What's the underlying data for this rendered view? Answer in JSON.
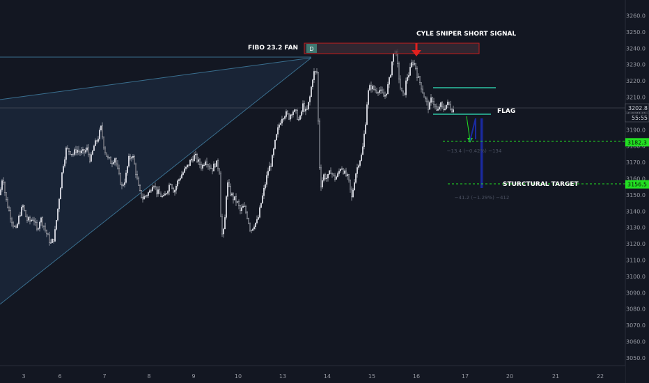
{
  "chart_data": {
    "type": "candlestick",
    "title": "",
    "xlabel": "",
    "ylabel": "",
    "ylim": [
      3043,
      3270
    ],
    "y_ticks": [
      3260.0,
      3250.0,
      3240.0,
      3230.0,
      3220.0,
      3210.0,
      3200.0,
      3190.0,
      3180.0,
      3170.0,
      3160.0,
      3150.0,
      3140.0,
      3130.0,
      3120.0,
      3110.0,
      3100.0,
      3090.0,
      3080.0,
      3070.0,
      3060.0,
      3050.0
    ],
    "y_tick_labels": [
      "3260.0",
      "3250.0",
      "3240.0",
      "3230.0",
      "3220.0",
      "3210.0",
      "3200.0",
      "3190.0",
      "3180.0",
      "3170.0",
      "3160.0",
      "3150.0",
      "3140.0",
      "3130.0",
      "3120.0",
      "3110.0",
      "3100.0",
      "3090.0",
      "3080.0",
      "3070.0",
      "3060.0",
      "3050.0"
    ],
    "x_tick_labels": [
      "3",
      "6",
      "7",
      "8",
      "9",
      "10",
      "13",
      "14",
      "15",
      "16",
      "17",
      "20",
      "21",
      "22"
    ],
    "price_series": {
      "name": "",
      "points": [
        [
          0,
          3150
        ],
        [
          4,
          3163
        ],
        [
          8,
          3148
        ],
        [
          13,
          3140
        ],
        [
          18,
          3133
        ],
        [
          23,
          3128
        ],
        [
          28,
          3138
        ],
        [
          33,
          3143
        ],
        [
          38,
          3135
        ],
        [
          43,
          3134
        ],
        [
          48,
          3136
        ],
        [
          53,
          3128
        ],
        [
          58,
          3136
        ],
        [
          63,
          3131
        ],
        [
          68,
          3125
        ],
        [
          73,
          3120
        ],
        [
          78,
          3124
        ],
        [
          82,
          3138
        ],
        [
          86,
          3152
        ],
        [
          90,
          3167
        ],
        [
          95,
          3178
        ],
        [
          100,
          3177
        ],
        [
          105,
          3175
        ],
        [
          110,
          3178
        ],
        [
          115,
          3176
        ],
        [
          120,
          3176
        ],
        [
          125,
          3178
        ],
        [
          130,
          3171
        ],
        [
          135,
          3180
        ],
        [
          140,
          3184
        ],
        [
          145,
          3191
        ],
        [
          150,
          3178
        ],
        [
          155,
          3172
        ],
        [
          160,
          3170
        ],
        [
          165,
          3173
        ],
        [
          170,
          3163
        ],
        [
          175,
          3155
        ],
        [
          180,
          3160
        ],
        [
          185,
          3172
        ],
        [
          190,
          3175
        ],
        [
          195,
          3164
        ],
        [
          200,
          3152
        ],
        [
          205,
          3148
        ],
        [
          210,
          3150
        ],
        [
          215,
          3152
        ],
        [
          220,
          3158
        ],
        [
          225,
          3152
        ],
        [
          230,
          3150
        ],
        [
          235,
          3148
        ],
        [
          240,
          3153
        ],
        [
          245,
          3158
        ],
        [
          250,
          3152
        ],
        [
          255,
          3158
        ],
        [
          260,
          3162
        ],
        [
          265,
          3165
        ],
        [
          270,
          3168
        ],
        [
          275,
          3172
        ],
        [
          280,
          3174
        ],
        [
          285,
          3170
        ],
        [
          290,
          3167
        ],
        [
          295,
          3172
        ],
        [
          300,
          3168
        ],
        [
          305,
          3166
        ],
        [
          310,
          3170
        ],
        [
          315,
          3165
        ],
        [
          318,
          3125
        ],
        [
          322,
          3128
        ],
        [
          326,
          3158
        ],
        [
          330,
          3152
        ],
        [
          335,
          3148
        ],
        [
          340,
          3146
        ],
        [
          345,
          3140
        ],
        [
          350,
          3143
        ],
        [
          355,
          3137
        ],
        [
          360,
          3128
        ],
        [
          365,
          3132
        ],
        [
          370,
          3134
        ],
        [
          375,
          3145
        ],
        [
          380,
          3155
        ],
        [
          385,
          3165
        ],
        [
          390,
          3170
        ],
        [
          395,
          3182
        ],
        [
          400,
          3192
        ],
        [
          405,
          3198
        ],
        [
          410,
          3200
        ],
        [
          415,
          3198
        ],
        [
          420,
          3202
        ],
        [
          425,
          3200
        ],
        [
          430,
          3195
        ],
        [
          435,
          3205
        ],
        [
          440,
          3200
        ],
        [
          445,
          3210
        ],
        [
          450,
          3225
        ],
        [
          455,
          3225
        ],
        [
          458,
          3180
        ],
        [
          460,
          3155
        ],
        [
          465,
          3162
        ],
        [
          470,
          3160
        ],
        [
          475,
          3165
        ],
        [
          480,
          3160
        ],
        [
          485,
          3162
        ],
        [
          490,
          3168
        ],
        [
          495,
          3163
        ],
        [
          500,
          3160
        ],
        [
          505,
          3148
        ],
        [
          510,
          3162
        ],
        [
          515,
          3170
        ],
        [
          520,
          3175
        ],
        [
          525,
          3195
        ],
        [
          528,
          3212
        ],
        [
          532,
          3217
        ],
        [
          536,
          3215
        ],
        [
          540,
          3214
        ],
        [
          544,
          3215
        ],
        [
          548,
          3212
        ],
        [
          552,
          3210
        ],
        [
          556,
          3215
        ],
        [
          560,
          3222
        ],
        [
          564,
          3235
        ],
        [
          568,
          3240
        ],
        [
          572,
          3225
        ],
        [
          576,
          3213
        ],
        [
          580,
          3210
        ],
        [
          584,
          3222
        ],
        [
          588,
          3225
        ],
        [
          592,
          3232
        ],
        [
          596,
          3230
        ],
        [
          600,
          3222
        ],
        [
          604,
          3218
        ],
        [
          608,
          3212
        ],
        [
          612,
          3207
        ],
        [
          616,
          3203
        ],
        [
          620,
          3210
        ],
        [
          624,
          3205
        ],
        [
          628,
          3200
        ],
        [
          632,
          3206
        ],
        [
          636,
          3202
        ],
        [
          640,
          3205
        ],
        [
          644,
          3206
        ],
        [
          648,
          3203
        ],
        [
          652,
          3202
        ]
      ]
    },
    "current_price_label": "3202.8",
    "countdown_label": "55:55",
    "price_labels": [
      {
        "value": 3182.3,
        "text": "3182.3",
        "color": "#22e022"
      },
      {
        "value": 3156.5,
        "text": "3156.5",
        "color": "#22e022"
      }
    ],
    "annotations": {
      "fan_label": "FIBO 23.2 FAN",
      "signal_label": "CYLE SNIPER SHORT SIGNAL",
      "flag_label": "FLAG",
      "target_label": "STURCTURAL TARGET",
      "box_tag": "D",
      "measure1": "−13.4 (−0.42%) −134",
      "measure2": "−41.2 (−1.29%) −412"
    },
    "grid": false,
    "legend": "none"
  },
  "colors": {
    "background": "#131722",
    "candle": "#d1d4dc",
    "fan": "#3a6f8f",
    "fan_fill": "#1c2a3e",
    "box_stroke": "#c21d1d",
    "box_fill": "#3a2b35",
    "arrow_red": "#e0201e",
    "flag_teal": "#2dc5a4",
    "green": "#22e022",
    "blue": "#1a2aa0",
    "tick_text": "#9598a1",
    "axis_line": "#2a2e39"
  }
}
